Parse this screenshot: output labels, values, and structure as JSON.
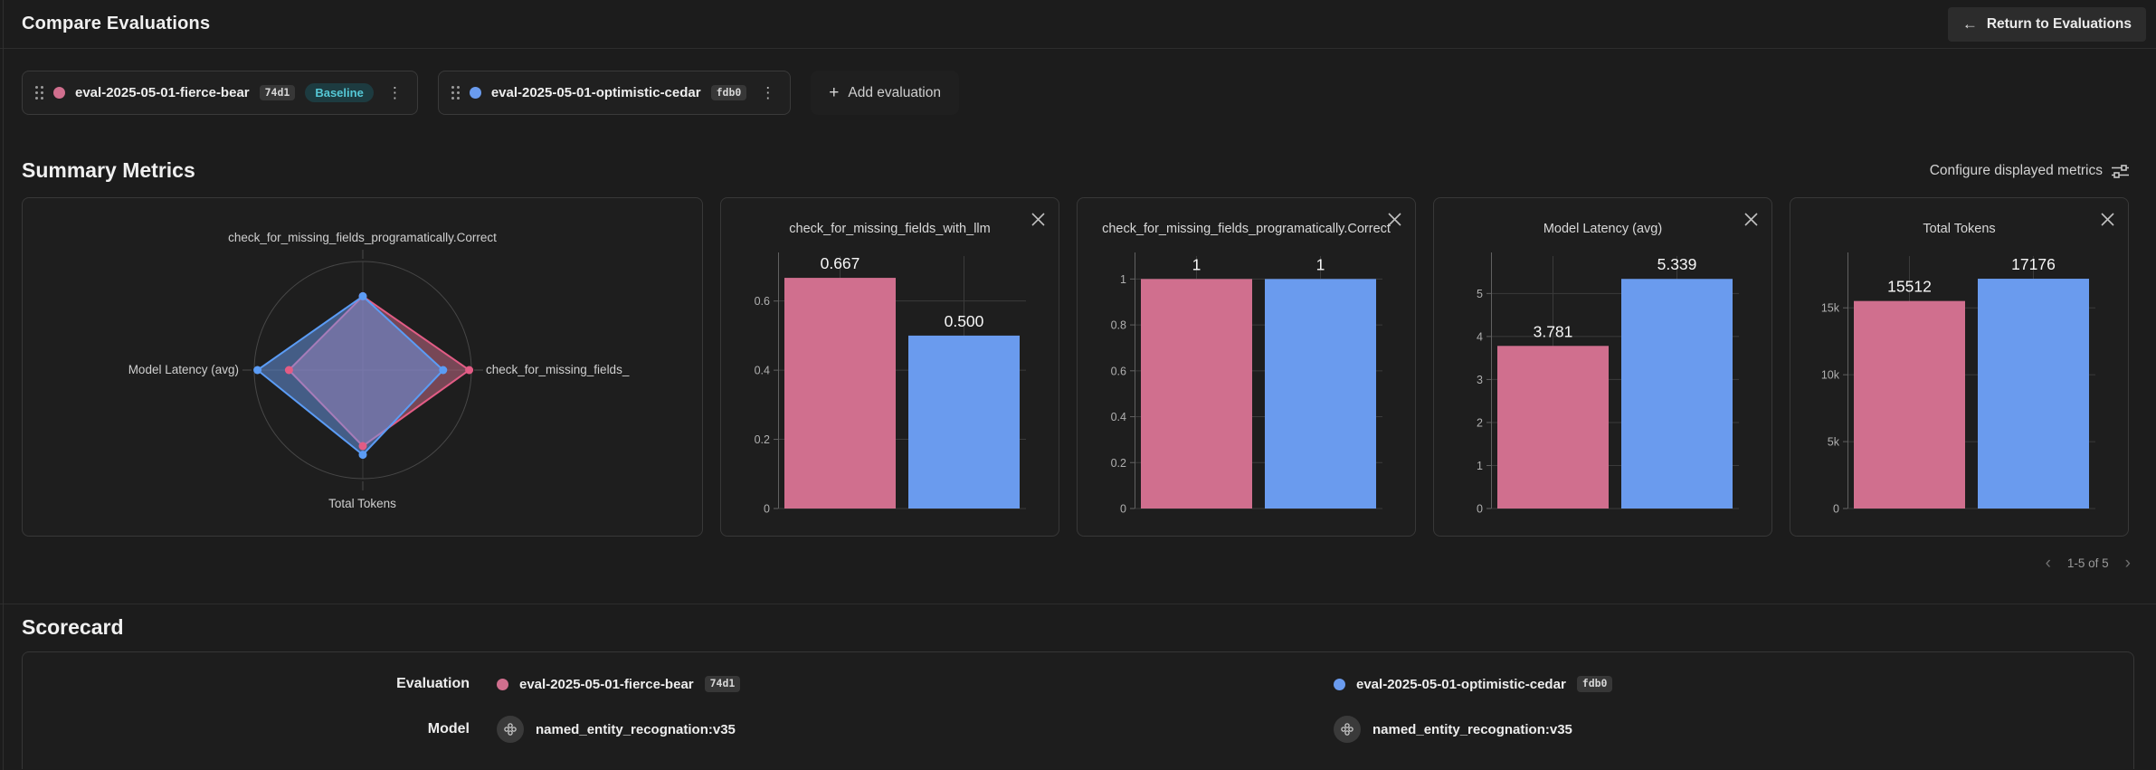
{
  "header": {
    "title": "Compare Evaluations",
    "return_button_label": "Return to Evaluations"
  },
  "icons": {
    "back_arrow": "←",
    "plus": "+",
    "kebab": "⋮",
    "prev_page": "‹",
    "next_page": "›"
  },
  "colors": {
    "pink": "#d06f8e",
    "blue": "#6a9bee",
    "baseline_accent": "#55c8d6"
  },
  "evaluations": [
    {
      "name": "eval-2025-05-01-fierce-bear",
      "hash": "74d1",
      "baseline_label": "Baseline",
      "color": "#d06f8e"
    },
    {
      "name": "eval-2025-05-01-optimistic-cedar",
      "hash": "fdb0",
      "color": "#6a9bee"
    }
  ],
  "add_evaluation_label": "Add evaluation",
  "summary": {
    "title": "Summary Metrics",
    "configure_label": "Configure displayed metrics",
    "pagination_label": "1-5 of 5"
  },
  "chart_data": [
    {
      "type": "radar",
      "axes": [
        "check_for_missing_fields_programatically.Correct",
        "check_for_missing_fields_",
        "Total Tokens",
        "Model Latency (avg)"
      ],
      "series": [
        {
          "name": "eval-2025-05-01-fierce-bear",
          "color": "#d06f8e",
          "stroke": "#e25c85",
          "normalized_values": [
            0.68,
            0.98,
            0.7,
            0.68
          ]
        },
        {
          "name": "eval-2025-05-01-optimistic-cedar",
          "color": "#6a9bee",
          "stroke": "#5b9cf5",
          "normalized_values": [
            0.68,
            0.74,
            0.78,
            0.97
          ]
        }
      ]
    },
    {
      "type": "bar",
      "title": "check_for_missing_fields_with_llm",
      "ymax": 0.73,
      "yticks": [
        {
          "value": 0.6,
          "label": "0.6"
        },
        {
          "value": 0.4,
          "label": "0.4"
        },
        {
          "value": 0.2,
          "label": "0.2"
        },
        {
          "value": 0,
          "label": "0"
        }
      ],
      "series": [
        {
          "name": "eval-2025-05-01-fierce-bear",
          "color": "#d06f8e",
          "value": 0.667,
          "label": "0.667"
        },
        {
          "name": "eval-2025-05-01-optimistic-cedar",
          "color": "#6a9bee",
          "value": 0.5,
          "label": "0.500"
        }
      ]
    },
    {
      "type": "bar",
      "title": "check_for_missing_fields_programatically.Correct",
      "ymax": 1.1,
      "yticks": [
        {
          "value": 1,
          "label": "1"
        },
        {
          "value": 0.8,
          "label": "0.8"
        },
        {
          "value": 0.6,
          "label": "0.6"
        },
        {
          "value": 0.4,
          "label": "0.4"
        },
        {
          "value": 0.2,
          "label": "0.2"
        },
        {
          "value": 0,
          "label": "0"
        }
      ],
      "series": [
        {
          "name": "eval-2025-05-01-fierce-bear",
          "color": "#d06f8e",
          "value": 1,
          "label": "1"
        },
        {
          "name": "eval-2025-05-01-optimistic-cedar",
          "color": "#6a9bee",
          "value": 1,
          "label": "1"
        }
      ]
    },
    {
      "type": "bar",
      "title": "Model Latency (avg)",
      "ymax": 5.87,
      "yticks": [
        {
          "value": 5,
          "label": "5"
        },
        {
          "value": 4,
          "label": "4"
        },
        {
          "value": 3,
          "label": "3"
        },
        {
          "value": 2,
          "label": "2"
        },
        {
          "value": 1,
          "label": "1"
        },
        {
          "value": 0,
          "label": "0"
        }
      ],
      "series": [
        {
          "name": "eval-2025-05-01-fierce-bear",
          "color": "#d06f8e",
          "value": 3.781,
          "label": "3.781"
        },
        {
          "name": "eval-2025-05-01-optimistic-cedar",
          "color": "#6a9bee",
          "value": 5.339,
          "label": "5.339"
        }
      ]
    },
    {
      "type": "bar",
      "title": "Total Tokens",
      "ymax": 18870,
      "yticks": [
        {
          "value": 15000,
          "label": "15k"
        },
        {
          "value": 10000,
          "label": "10k"
        },
        {
          "value": 5000,
          "label": "5k"
        },
        {
          "value": 0,
          "label": "0"
        }
      ],
      "series": [
        {
          "name": "eval-2025-05-01-fierce-bear",
          "color": "#d06f8e",
          "value": 15512,
          "label": "15512"
        },
        {
          "name": "eval-2025-05-01-optimistic-cedar",
          "color": "#6a9bee",
          "value": 17176,
          "label": "17176"
        }
      ]
    }
  ],
  "scorecard": {
    "title": "Scorecard",
    "row_labels": {
      "evaluation": "Evaluation",
      "model": "Model"
    },
    "model_values": [
      "named_entity_recognation:v35",
      "named_entity_recognation:v35"
    ]
  }
}
